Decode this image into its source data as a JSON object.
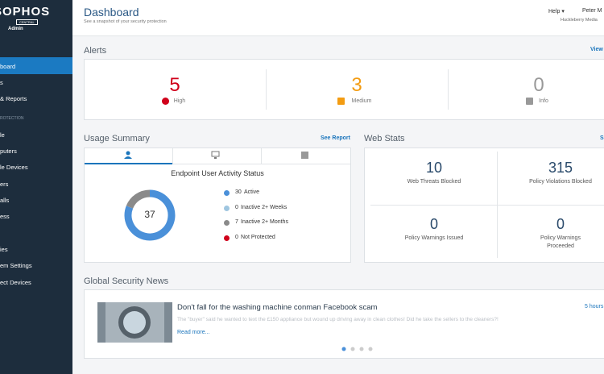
{
  "sidebar": {
    "logo": "SOPHOS",
    "logo_sub": "CENTRAL",
    "role": "Admin",
    "items": [
      "board",
      "s",
      "& Reports",
      "ROTECTION",
      "le",
      "puters",
      "le Devices",
      "ers",
      "alls",
      "ess",
      "ies",
      "em Settings",
      "ect Devices"
    ]
  },
  "header": {
    "title": "Dashboard",
    "subtitle": "See a snapshot of your security protection",
    "help": "Help",
    "user": "Peter M",
    "company": "Huckleberry Media"
  },
  "alerts": {
    "title": "Alerts",
    "link": "View",
    "items": [
      {
        "count": 5,
        "label": "High"
      },
      {
        "count": 3,
        "label": "Medium"
      },
      {
        "count": 0,
        "label": "Info"
      }
    ]
  },
  "usage": {
    "title": "Usage Summary",
    "link": "See Report",
    "chart_title": "Endpoint User Activity Status",
    "total": 37,
    "legend": [
      {
        "count": 30,
        "label": "Active",
        "color": "#4a90d9"
      },
      {
        "count": 0,
        "label": "Inactive 2+ Weeks",
        "color": "#9fc6e0"
      },
      {
        "count": 7,
        "label": "Inactive 2+ Months",
        "color": "#8a8a8a"
      },
      {
        "count": 0,
        "label": "Not Protected",
        "color": "#d0021b"
      }
    ]
  },
  "web_stats": {
    "title": "Web Stats",
    "link": "S",
    "items": [
      {
        "count": 10,
        "label": "Web Threats Blocked"
      },
      {
        "count": 315,
        "label": "Policy Violations Blocked"
      },
      {
        "count": 0,
        "label": "Policy Warnings Issued"
      },
      {
        "count": 0,
        "label": "Policy Warnings Proceeded"
      }
    ]
  },
  "news": {
    "title": "Global Security News",
    "headline": "Don't fall for the washing machine conman Facebook scam",
    "summary": "The \"buyer\" said he wanted to text the £150 appliance but wound up driving away in clean clothes! Did he take the sellers to the cleaners?!",
    "read_more": "Read more...",
    "time": "5 hours"
  }
}
